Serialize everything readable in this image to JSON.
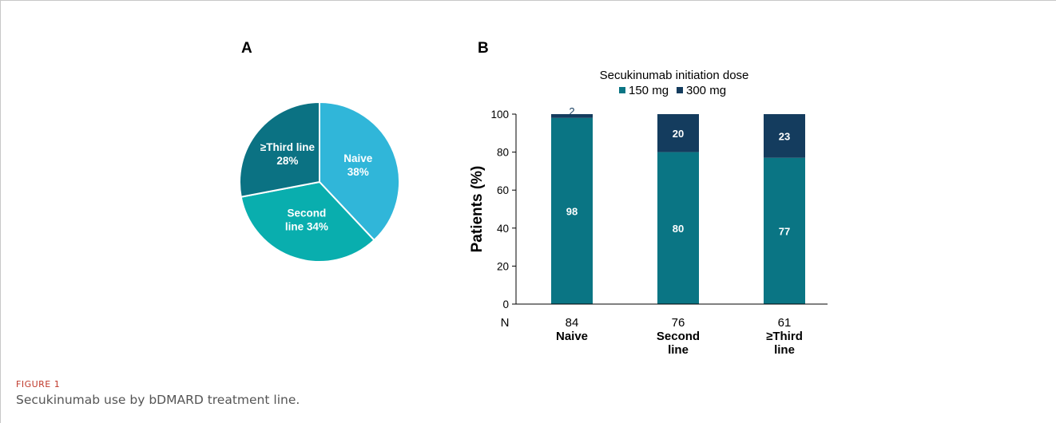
{
  "figure": {
    "label": "FIGURE 1",
    "caption": "Secukinumab use by bDMARD treatment line."
  },
  "panel_a": {
    "letter": "A"
  },
  "panel_b": {
    "letter": "B",
    "legend_title": "Secukinumab initiation dose",
    "n_label": "N"
  },
  "colors": {
    "naive": "#30b6d9",
    "second": "#09aeae",
    "third": "#0b7283",
    "dose150": "#0a7584",
    "dose300": "#143c5e"
  },
  "chart_data": [
    {
      "type": "pie",
      "slices": [
        {
          "label": "Naive",
          "value": 38,
          "text": [
            "Naive",
            "38%"
          ]
        },
        {
          "label": "Second line",
          "value": 34,
          "text": [
            "Second",
            "line 34%"
          ]
        },
        {
          "label": "≥Third line",
          "value": 28,
          "text": [
            "≥Third line",
            "28%"
          ]
        }
      ]
    },
    {
      "type": "bar",
      "stacked": true,
      "ylabel": "Patients (%)",
      "ylim": [
        0,
        100
      ],
      "yticks": [
        0,
        20,
        40,
        60,
        80,
        100
      ],
      "categories": [
        {
          "n": "84",
          "label": [
            "Naive"
          ]
        },
        {
          "n": "76",
          "label": [
            "Second",
            "line"
          ]
        },
        {
          "n": "61",
          "label": [
            "≥Third",
            "line"
          ]
        }
      ],
      "series": [
        {
          "name": "150 mg",
          "values": [
            98,
            80,
            77
          ]
        },
        {
          "name": "300 mg",
          "values": [
            2,
            20,
            23
          ]
        }
      ],
      "legend_position": "top"
    }
  ]
}
